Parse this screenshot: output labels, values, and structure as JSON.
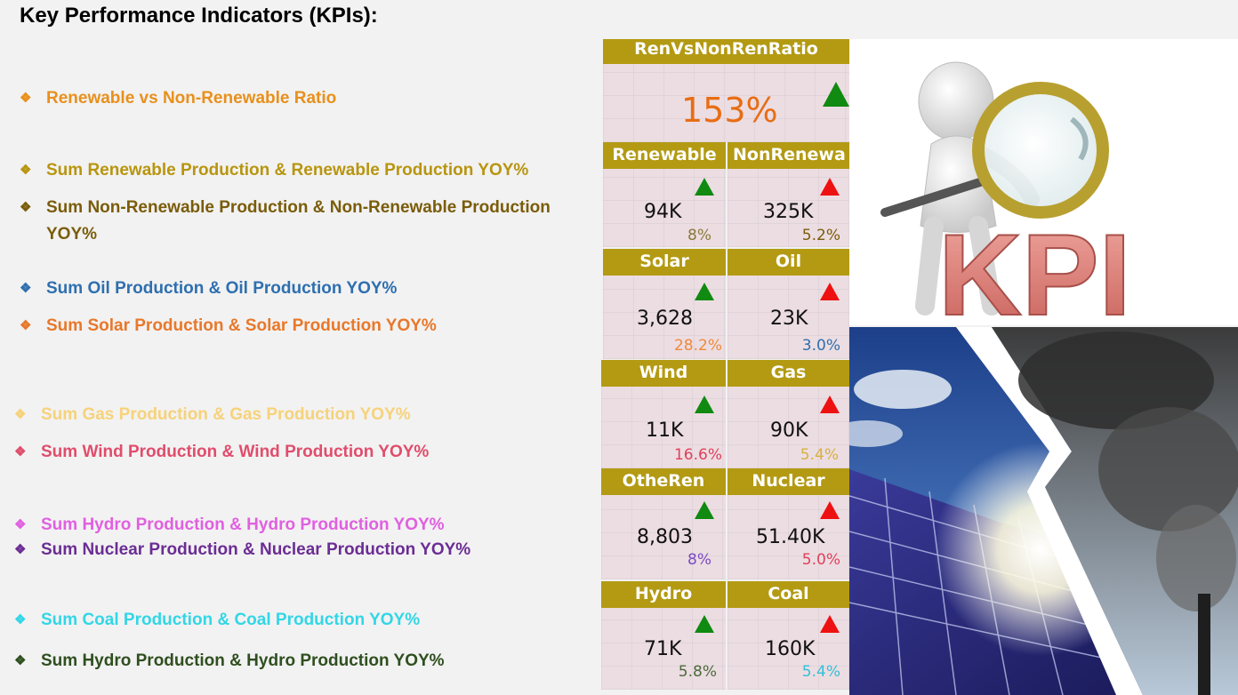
{
  "page": {
    "title": "Key Performance Indicators (KPIs):"
  },
  "bullets": [
    {
      "text": "Renewable vs Non-Renewable Ratio",
      "color": "#e8901c"
    },
    {
      "text": "Sum Renewable Production & Renewable Production YOY%",
      "color": "#b8950f"
    },
    {
      "text": "Sum Non-Renewable Production & Non-Renewable Production YOY%",
      "color": "#7a5c0a"
    },
    {
      "text": "Sum Oil Production & Oil Production YOY%",
      "color": "#2e6faf"
    },
    {
      "text": "Sum Solar Production & Solar Production YOY%",
      "color": "#e8782a"
    },
    {
      "text": "Sum Gas Production & Gas Production YOY%",
      "color": "#f6d27a"
    },
    {
      "text": "Sum Wind Production & Wind Production YOY%",
      "color": "#e04d6c"
    },
    {
      "text": "Sum Hydro Production & Hydro Production YOY%",
      "color": "#e060e0"
    },
    {
      "text": "Sum Nuclear Production & Nuclear Production YOY%",
      "color": "#6b2d94"
    },
    {
      "text": "Sum Coal Production & Coal Production YOY%",
      "color": "#33d6e6"
    },
    {
      "text": "Sum Hydro Production & Hydro Production YOY%",
      "color": "#2f4f1f"
    }
  ],
  "ratio_card": {
    "label": "RenVsNonRenRatio",
    "value": "153%"
  },
  "kpi_cards": [
    {
      "label": "Renewable",
      "value": "94K",
      "yoy": "8%",
      "yoy_color": "#8a7a3a",
      "trend": "up-green"
    },
    {
      "label": "NonRenewa",
      "value": "325K",
      "yoy": "5.2%",
      "yoy_color": "#7a5c0a",
      "trend": "up-red"
    },
    {
      "label": "Solar",
      "value": "3,628",
      "yoy": "28.2%",
      "yoy_color": "#f08a3a",
      "trend": "up-green"
    },
    {
      "label": "Oil",
      "value": "23K",
      "yoy": "3.0%",
      "yoy_color": "#2e6faf",
      "trend": "up-red"
    },
    {
      "label": "Wind",
      "value": "11K",
      "yoy": "16.6%",
      "yoy_color": "#e0405a",
      "trend": "up-green"
    },
    {
      "label": "Gas",
      "value": "90K",
      "yoy": "5.4%",
      "yoy_color": "#d8b040",
      "trend": "up-red"
    },
    {
      "label": "OtheRen",
      "value": "8,803",
      "yoy": "8%",
      "yoy_color": "#7a4abf",
      "trend": "up-green"
    },
    {
      "label": "Nuclear",
      "value": "51.40K",
      "yoy": "5.0%",
      "yoy_color": "#e0405a",
      "trend": "up-red"
    },
    {
      "label": "Hydro",
      "value": "71K",
      "yoy": "5.8%",
      "yoy_color": "#4a6a3a",
      "trend": "up-green"
    },
    {
      "label": "Coal",
      "value": "160K",
      "yoy": "5.4%",
      "yoy_color": "#33c0d6",
      "trend": "up-red"
    }
  ],
  "images": {
    "kpi_text": "KPI"
  }
}
